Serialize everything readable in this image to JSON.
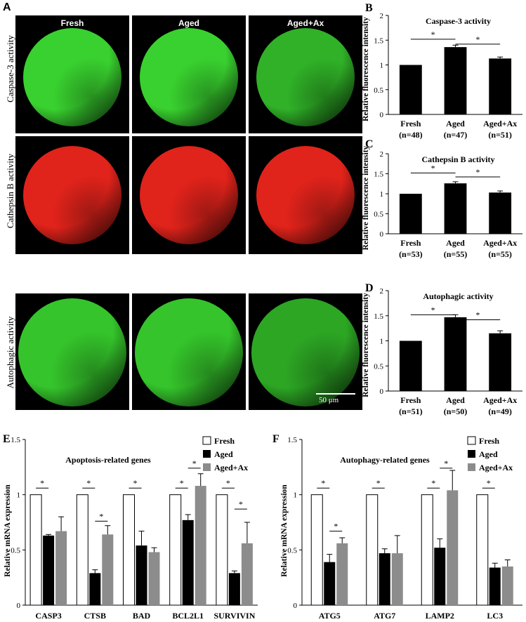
{
  "panel_A": {
    "letter": "A",
    "columns": [
      "Fresh",
      "Aged",
      "Aged+Ax"
    ],
    "rows": [
      "Caspase-3 activity",
      "Cathepsin B activity",
      "Autophagic activity"
    ],
    "row_colors": [
      "#39d12f",
      "#e0231b",
      "#35c42b"
    ],
    "scale_label": "50 μm"
  },
  "chart_data": [
    {
      "id": "B",
      "type": "bar",
      "title": "Caspase-3 activity",
      "ylabel": "Relative fluorescence intensity",
      "categories": [
        "Fresh",
        "Aged",
        "Aged+Ax"
      ],
      "sub_labels": [
        "(n=48)",
        "(n=47)",
        "(n=51)"
      ],
      "values": [
        1.0,
        1.36,
        1.13
      ],
      "errors": [
        0.0,
        0.04,
        0.03
      ],
      "ylim": [
        0,
        2
      ],
      "yticks": [
        "0",
        "0.5",
        "1",
        "1.5",
        "2"
      ],
      "bar_color": "#000000",
      "significance": [
        {
          "from": 0,
          "to": 1,
          "label": "*"
        },
        {
          "from": 1,
          "to": 2,
          "label": "*"
        }
      ]
    },
    {
      "id": "C",
      "type": "bar",
      "title": "Cathepsin B activity",
      "ylabel": "Relative fluorescence intensity",
      "categories": [
        "Fresh",
        "Aged",
        "Aged+Ax"
      ],
      "sub_labels": [
        "(n=53)",
        "(n=55)",
        "(n=55)"
      ],
      "values": [
        1.0,
        1.26,
        1.03
      ],
      "errors": [
        0.0,
        0.04,
        0.04
      ],
      "ylim": [
        0,
        2
      ],
      "yticks": [
        "0",
        "0.5",
        "1",
        "1.5",
        "2"
      ],
      "bar_color": "#000000",
      "significance": [
        {
          "from": 0,
          "to": 1,
          "label": "*"
        },
        {
          "from": 1,
          "to": 2,
          "label": "*"
        }
      ]
    },
    {
      "id": "D",
      "type": "bar",
      "title": "Autophagic activity",
      "ylabel": "Relative fluorescence intensity",
      "categories": [
        "Fresh",
        "Aged",
        "Aged+Ax"
      ],
      "sub_labels": [
        "(n=51)",
        "(n=50)",
        "(n=49)"
      ],
      "values": [
        1.0,
        1.47,
        1.15
      ],
      "errors": [
        0.0,
        0.05,
        0.05
      ],
      "ylim": [
        0,
        2
      ],
      "yticks": [
        "0",
        "0.5",
        "1",
        "1.5",
        "2"
      ],
      "bar_color": "#000000",
      "significance": [
        {
          "from": 0,
          "to": 1,
          "label": "*"
        },
        {
          "from": 1,
          "to": 2,
          "label": "*"
        }
      ]
    },
    {
      "id": "E",
      "type": "bar",
      "title": "Apoptosis-related genes",
      "ylabel": "Relative mRNA expression",
      "categories": [
        "CASP3",
        "CTSB",
        "BAD",
        "BCL2L1",
        "SURVIVIN"
      ],
      "ylim": [
        0,
        1.5
      ],
      "yticks": [
        "0",
        "0.5",
        "1",
        "1.5"
      ],
      "series": [
        {
          "name": "Fresh",
          "color": "#ffffff",
          "values": [
            1.0,
            1.0,
            1.0,
            1.0,
            1.0
          ],
          "errors": [
            0,
            0,
            0,
            0,
            0
          ]
        },
        {
          "name": "Aged",
          "color": "#000000",
          "values": [
            0.63,
            0.29,
            0.54,
            0.77,
            0.29
          ],
          "errors": [
            0.01,
            0.03,
            0.13,
            0.05,
            0.02
          ]
        },
        {
          "name": "Aged+Ax",
          "color": "#8c8c8c",
          "values": [
            0.67,
            0.64,
            0.48,
            1.08,
            0.56
          ],
          "errors": [
            0.13,
            0.08,
            0.04,
            0.11,
            0.19
          ]
        }
      ],
      "significance": [
        {
          "cat": 0,
          "from": 0,
          "to": 1,
          "y": 1.06,
          "label": "*"
        },
        {
          "cat": 1,
          "from": 0,
          "to": 1,
          "y": 1.06,
          "label": "*"
        },
        {
          "cat": 1,
          "from": 1,
          "to": 2,
          "y": 0.76,
          "label": "*"
        },
        {
          "cat": 2,
          "from": 0,
          "to": 1,
          "y": 1.06,
          "label": "*"
        },
        {
          "cat": 3,
          "from": 0,
          "to": 1,
          "y": 1.06,
          "label": "*"
        },
        {
          "cat": 3,
          "from": 1,
          "to": 2,
          "y": 1.24,
          "label": "*"
        },
        {
          "cat": 4,
          "from": 0,
          "to": 1,
          "y": 1.06,
          "label": "*"
        },
        {
          "cat": 4,
          "from": 1,
          "to": 2,
          "y": 0.87,
          "label": "*"
        }
      ],
      "legend_position": "top-right"
    },
    {
      "id": "F",
      "type": "bar",
      "title": "Autophagy-related genes",
      "ylabel": "Relative mRNA expression",
      "categories": [
        "ATG5",
        "ATG7",
        "LAMP2",
        "LC3"
      ],
      "ylim": [
        0,
        1.5
      ],
      "yticks": [
        "0",
        "0.5",
        "1",
        "1.5"
      ],
      "series": [
        {
          "name": "Fresh",
          "color": "#ffffff",
          "values": [
            1.0,
            1.0,
            1.0,
            1.0
          ],
          "errors": [
            0,
            0,
            0,
            0
          ]
        },
        {
          "name": "Aged",
          "color": "#000000",
          "values": [
            0.39,
            0.47,
            0.52,
            0.34
          ],
          "errors": [
            0.07,
            0.04,
            0.08,
            0.04
          ]
        },
        {
          "name": "Aged+Ax",
          "color": "#8c8c8c",
          "values": [
            0.56,
            0.47,
            1.04,
            0.35
          ],
          "errors": [
            0.05,
            0.16,
            0.18,
            0.06
          ]
        }
      ],
      "significance": [
        {
          "cat": 0,
          "from": 0,
          "to": 1,
          "y": 1.06,
          "label": "*"
        },
        {
          "cat": 0,
          "from": 1,
          "to": 2,
          "y": 0.67,
          "label": "*"
        },
        {
          "cat": 1,
          "from": 0,
          "to": 1,
          "y": 1.06,
          "label": "*"
        },
        {
          "cat": 2,
          "from": 0,
          "to": 1,
          "y": 1.06,
          "label": "*"
        },
        {
          "cat": 2,
          "from": 1,
          "to": 2,
          "y": 1.24,
          "label": "*"
        },
        {
          "cat": 3,
          "from": 0,
          "to": 1,
          "y": 1.06,
          "label": "*"
        }
      ],
      "legend_position": "top-right"
    }
  ]
}
